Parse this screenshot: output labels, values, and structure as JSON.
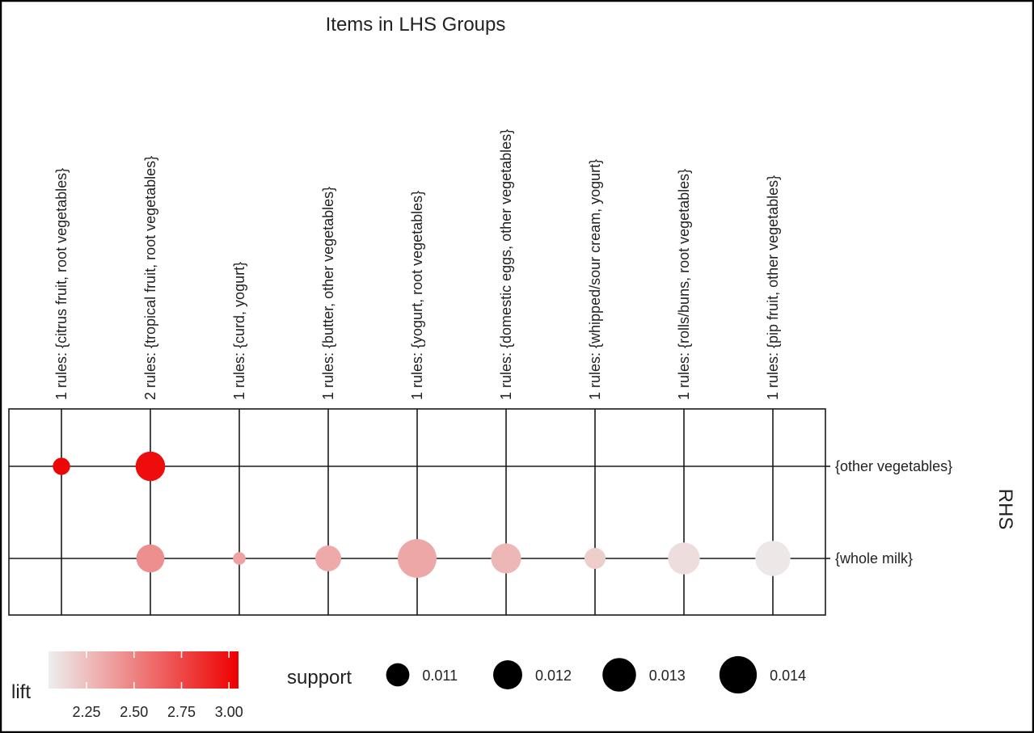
{
  "chart_data": {
    "type": "scatter",
    "title": "Items in LHS Groups",
    "x_categories": [
      "1 rules: {citrus fruit, root vegetables}",
      "2 rules: {tropical fruit, root vegetables}",
      "1 rules: {curd, yogurt}",
      "1 rules: {butter, other vegetables}",
      "1 rules: {yogurt, root vegetables}",
      "1 rules: {domestic eggs, other vegetables}",
      "1 rules: {whipped/sour cream, yogurt}",
      "1 rules: {rolls/buns, root vegetables}",
      "1 rules: {pip fruit, other vegetables}"
    ],
    "y_categories": [
      "{other vegetables}",
      "{whole milk}"
    ],
    "y_axis_title": "RHS",
    "points": [
      {
        "x": 0,
        "y": 0,
        "lift": 3.03,
        "support": 0.0104
      },
      {
        "x": 1,
        "y": 0,
        "lift": 3.0,
        "support": 0.0122
      },
      {
        "x": 1,
        "y": 1,
        "lift": 2.45,
        "support": 0.0119
      },
      {
        "x": 2,
        "y": 1,
        "lift": 2.37,
        "support": 0.0101
      },
      {
        "x": 3,
        "y": 1,
        "lift": 2.34,
        "support": 0.0115
      },
      {
        "x": 4,
        "y": 1,
        "lift": 2.35,
        "support": 0.0145
      },
      {
        "x": 5,
        "y": 1,
        "lift": 2.28,
        "support": 0.0123
      },
      {
        "x": 6,
        "y": 1,
        "lift": 2.19,
        "support": 0.0108
      },
      {
        "x": 7,
        "y": 1,
        "lift": 2.12,
        "support": 0.0127
      },
      {
        "x": 8,
        "y": 1,
        "lift": 2.08,
        "support": 0.0135
      }
    ],
    "lift_legend": {
      "title": "lift",
      "min": 2.05,
      "max": 3.05,
      "ticks": [
        2.25,
        2.5,
        2.75,
        3.0
      ],
      "tick_labels": [
        "2.25",
        "2.50",
        "2.75",
        "3.00"
      ],
      "color_low": "#eeeeee",
      "color_high": "#ee0000"
    },
    "support_legend": {
      "title": "support",
      "values": [
        0.011,
        0.012,
        0.013,
        0.014
      ],
      "labels": [
        "0.011",
        "0.012",
        "0.013",
        "0.014"
      ],
      "color": "#000000"
    }
  }
}
